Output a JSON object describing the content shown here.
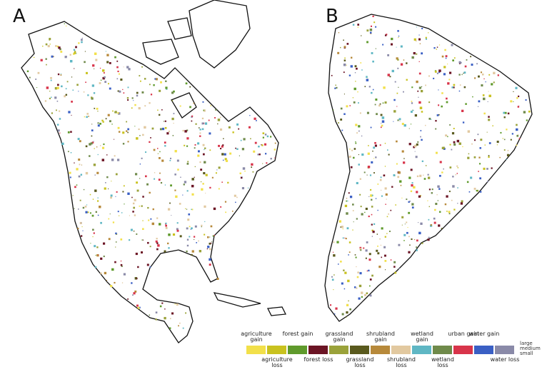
{
  "panels": [
    {
      "label": "A"
    },
    {
      "label": "B"
    }
  ],
  "legend": {
    "items": [
      {
        "label": "agriculture gain",
        "color": "#f2e04a",
        "row": "top"
      },
      {
        "label": "agriculture loss",
        "color": "#c9c21f",
        "row": "bottom"
      },
      {
        "label": "forest gain",
        "color": "#5f9a2c",
        "row": "top"
      },
      {
        "label": "forest loss",
        "color": "#6b1424",
        "row": "bottom"
      },
      {
        "label": "grassland gain",
        "color": "#9aa23a",
        "row": "top"
      },
      {
        "label": "grassland loss",
        "color": "#5a5a1e",
        "row": "bottom"
      },
      {
        "label": "shrubland gain",
        "color": "#b7893a",
        "row": "top"
      },
      {
        "label": "shrubland loss",
        "color": "#e2c9a0",
        "row": "bottom"
      },
      {
        "label": "wetland gain",
        "color": "#5fb7c4",
        "row": "top"
      },
      {
        "label": "wetland loss",
        "color": "#6f8a4a",
        "row": "bottom"
      },
      {
        "label": "urban gain",
        "color": "#d8344a",
        "row": "top"
      },
      {
        "label": "water gain",
        "color": "#3a5fc4",
        "row": "top"
      },
      {
        "label": "water loss",
        "color": "#8a8aa8",
        "row": "bottom"
      }
    ],
    "size_label": "large medium small"
  }
}
